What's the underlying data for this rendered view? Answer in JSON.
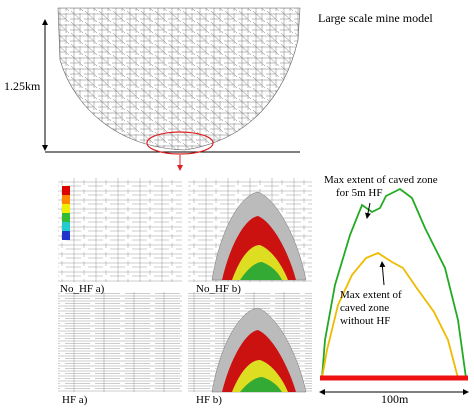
{
  "top_panel": {
    "title": "Large scale mine model",
    "height_label": "1.25km"
  },
  "panels": [
    {
      "label": "No_HF a)"
    },
    {
      "label": "No_HF b)"
    },
    {
      "label": "HF a)"
    },
    {
      "label": "HF b)"
    }
  ],
  "right_panel": {
    "annotations": [
      [
        "Max extent of caved zone",
        "for 5m HF"
      ],
      [
        "Max extent of",
        "caved zone",
        "without HF"
      ]
    ],
    "width_label": "100m"
  }
}
